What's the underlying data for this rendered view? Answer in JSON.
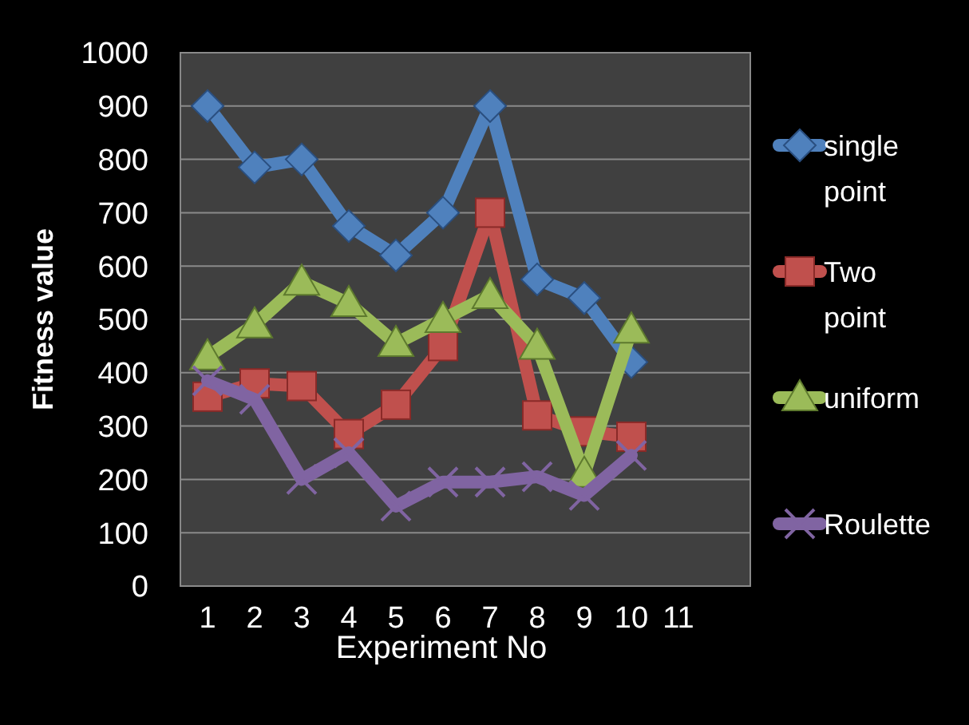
{
  "chart_data": {
    "type": "line",
    "xlabel": "Experiment No",
    "ylabel": "Fitness value",
    "categories": [
      "1",
      "2",
      "3",
      "4",
      "5",
      "6",
      "7",
      "8",
      "9",
      "10",
      "11"
    ],
    "ylim": [
      0,
      1000
    ],
    "yticks": [
      0,
      100,
      200,
      300,
      400,
      500,
      600,
      700,
      800,
      900,
      1000
    ],
    "grid": "y",
    "legend": "right",
    "series": [
      {
        "name": "single point",
        "color": "#4f81bd",
        "marker": "diamond",
        "values": [
          900,
          785,
          800,
          675,
          620,
          700,
          900,
          575,
          540,
          420,
          null
        ]
      },
      {
        "name": "Two point",
        "color": "#c0504d",
        "marker": "square",
        "values": [
          355,
          380,
          375,
          285,
          340,
          450,
          700,
          320,
          290,
          280,
          null
        ]
      },
      {
        "name": "uniform",
        "color": "#9bbb59",
        "marker": "triangle",
        "values": [
          430,
          490,
          570,
          530,
          455,
          500,
          545,
          450,
          210,
          480,
          null
        ]
      },
      {
        "name": "Roulette",
        "color": "#8064a2",
        "marker": "cross",
        "values": [
          385,
          350,
          200,
          250,
          150,
          195,
          195,
          205,
          170,
          245,
          null
        ]
      }
    ]
  }
}
